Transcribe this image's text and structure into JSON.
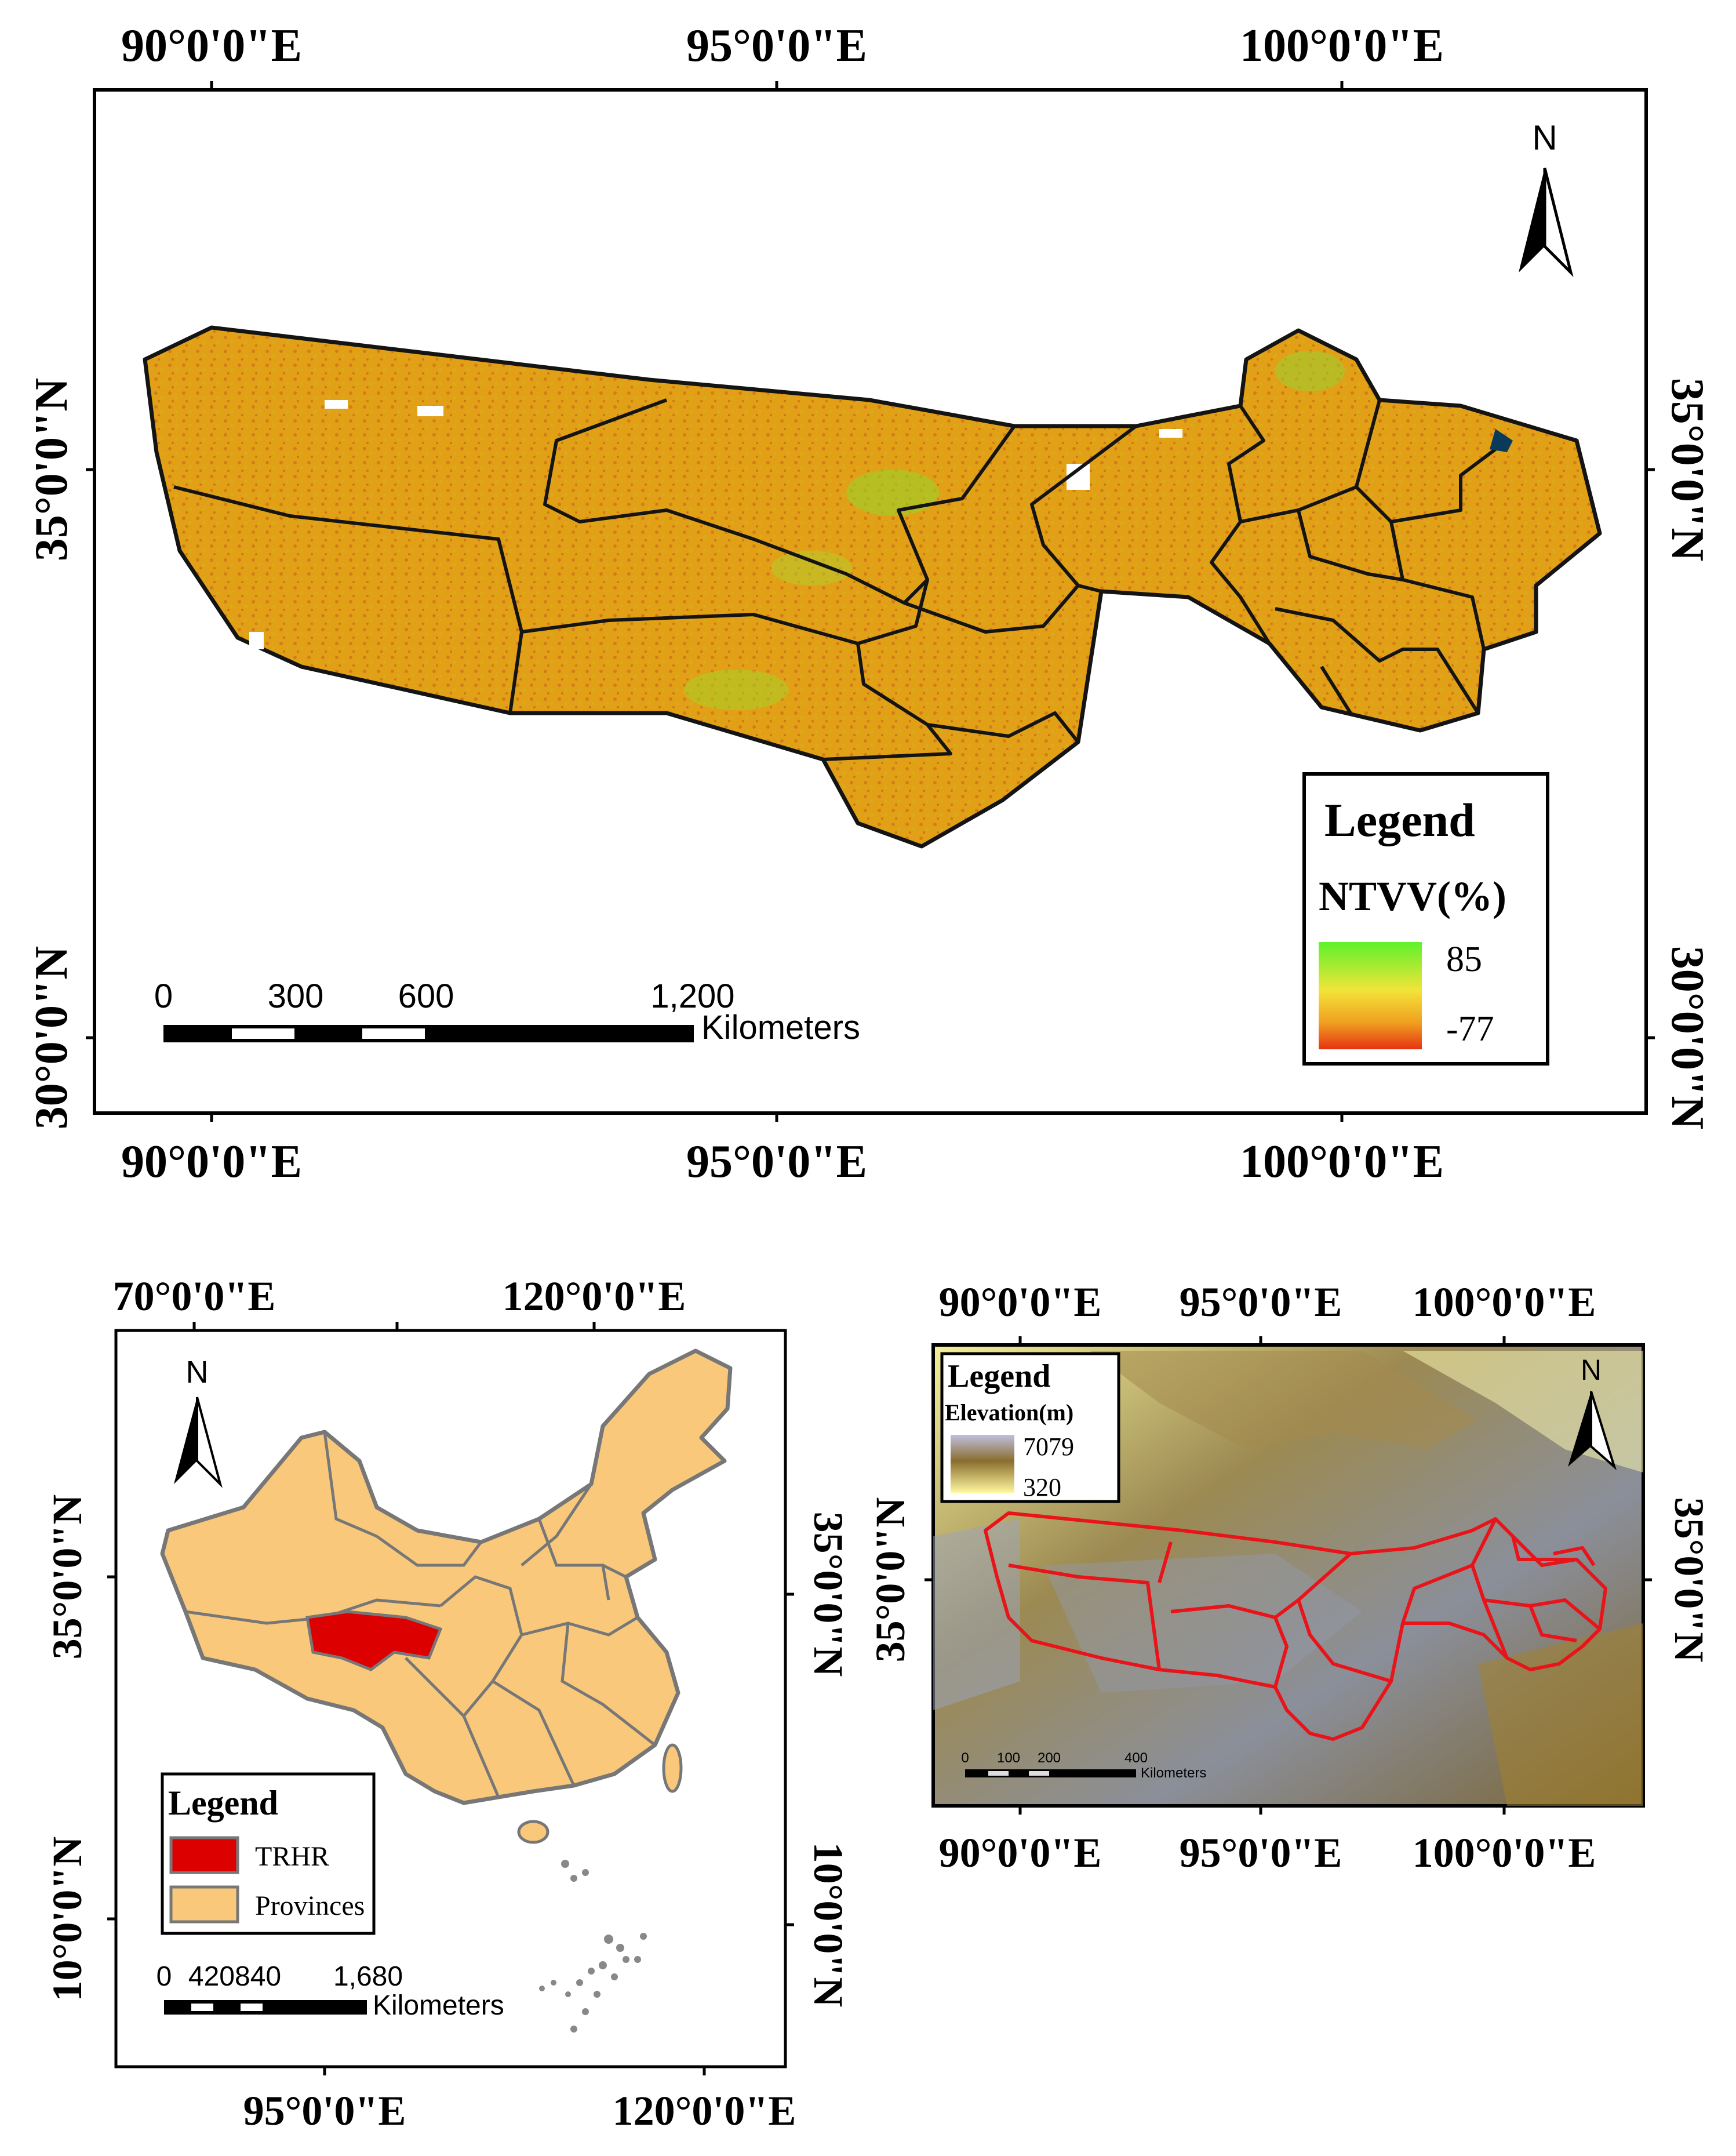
{
  "main_map": {
    "top_lon_labels": [
      "90°0'0\"E",
      "95°0'0\"E",
      "100°0'0\"E"
    ],
    "bottom_lon_labels": [
      "90°0'0\"E",
      "95°0'0\"E",
      "100°0'0\"E"
    ],
    "left_lat_labels": [
      "35°0'0\"N",
      "30°0'0\"N"
    ],
    "right_lat_labels": [
      "35°0'0\"N",
      "30°0'0\"N"
    ],
    "north_label": "N",
    "legend": {
      "title": "Legend",
      "variable": "NTVV(%)",
      "max": "85",
      "min": "-77"
    },
    "scalebar": {
      "ticks": [
        "0",
        "300",
        "600",
        "1,200"
      ],
      "unit": "Kilometers"
    },
    "colors": {
      "high": "#66ff33",
      "mid": "#e8a010",
      "low": "#e03010",
      "boundary": "#1a1a1a"
    }
  },
  "china_map": {
    "top_lon_labels": [
      "70°0'0\"E",
      "120°0'0\"E"
    ],
    "bottom_lon_labels": [
      "95°0'0\"E",
      "120°0'0\"E"
    ],
    "left_lat_labels": [
      "35°0'0\"N",
      "10°0'0\"N"
    ],
    "right_lat_labels": [
      "35°0'0\"N",
      "10°0'0\"N"
    ],
    "north_label": "N",
    "legend": {
      "title": "Legend",
      "items": [
        {
          "label": "TRHR",
          "color": "#dd0000"
        },
        {
          "label": "Provinces",
          "color": "#f9c87a"
        }
      ]
    },
    "scalebar": {
      "ticks": [
        "0",
        "420840",
        "1,680"
      ],
      "unit": "Kilometers"
    }
  },
  "elevation_map": {
    "top_lon_labels": [
      "90°0'0\"E",
      "95°0'0\"E",
      "100°0'0\"E"
    ],
    "bottom_lon_labels": [
      "90°0'0\"E",
      "95°0'0\"E",
      "100°0'0\"E"
    ],
    "right_lat_labels": [
      "35°0'0\"N"
    ],
    "left_lat_labels": [
      "35°0'0\"N"
    ],
    "north_label": "N",
    "legend": {
      "title": "Legend",
      "variable": "Elevation(m)",
      "max": "7079",
      "min": "320"
    },
    "scalebar": {
      "ticks": [
        "0",
        "100",
        "200",
        "400"
      ],
      "unit": "Kilometers"
    }
  }
}
